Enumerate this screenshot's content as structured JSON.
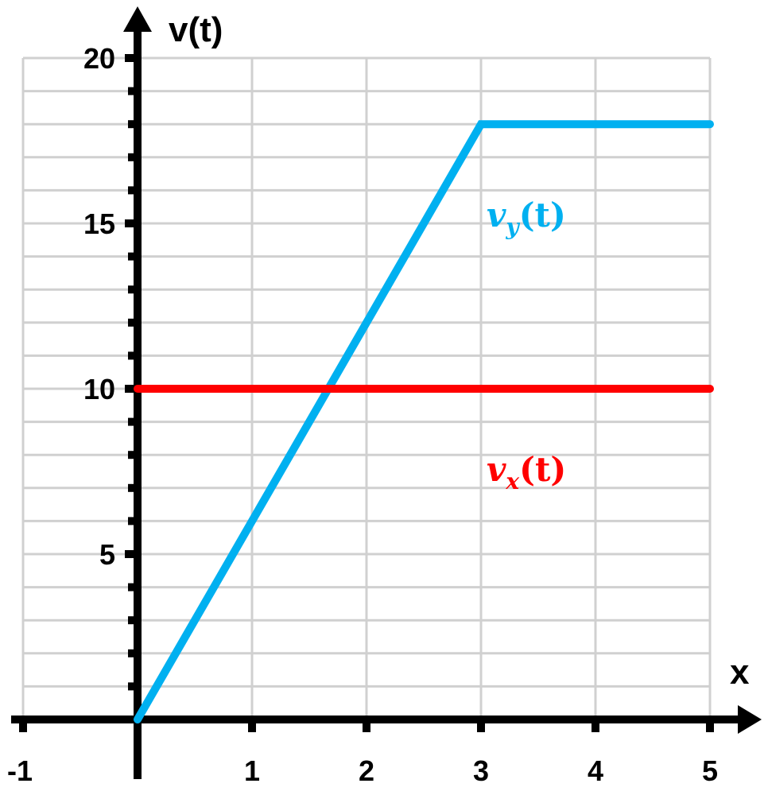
{
  "chart_data": {
    "type": "line",
    "title": "",
    "xlabel": "x",
    "ylabel": "v(t)",
    "xlim": [
      -1,
      5
    ],
    "ylim": [
      0,
      20
    ],
    "x_ticks": [
      -1,
      1,
      2,
      3,
      4,
      5
    ],
    "y_ticks": [
      5,
      10,
      15,
      20
    ],
    "y_minor_step": 1,
    "grid": true,
    "legend_position": "inline labels",
    "series": [
      {
        "name": "v_y(t)",
        "label_main": "v",
        "label_sub": "y",
        "label_tail": "(t)",
        "color": "#00b0f0",
        "x": [
          0,
          3,
          5
        ],
        "y": [
          0,
          18,
          18
        ]
      },
      {
        "name": "v_x(t)",
        "label_main": "v",
        "label_sub": "x",
        "label_tail": "(t)",
        "color": "#ff0000",
        "x": [
          0,
          5
        ],
        "y": [
          10,
          10
        ]
      }
    ]
  },
  "axes": {
    "y_title": "v(t)",
    "x_title": "x",
    "x_tick_labels": [
      "-1",
      "1",
      "2",
      "3",
      "4",
      "5"
    ],
    "y_tick_labels": [
      "5",
      "10",
      "15",
      "20"
    ]
  },
  "colors": {
    "grid": "#d0d0d0",
    "axis": "#000000",
    "vy": "#00b0f0",
    "vx": "#ff0000"
  }
}
